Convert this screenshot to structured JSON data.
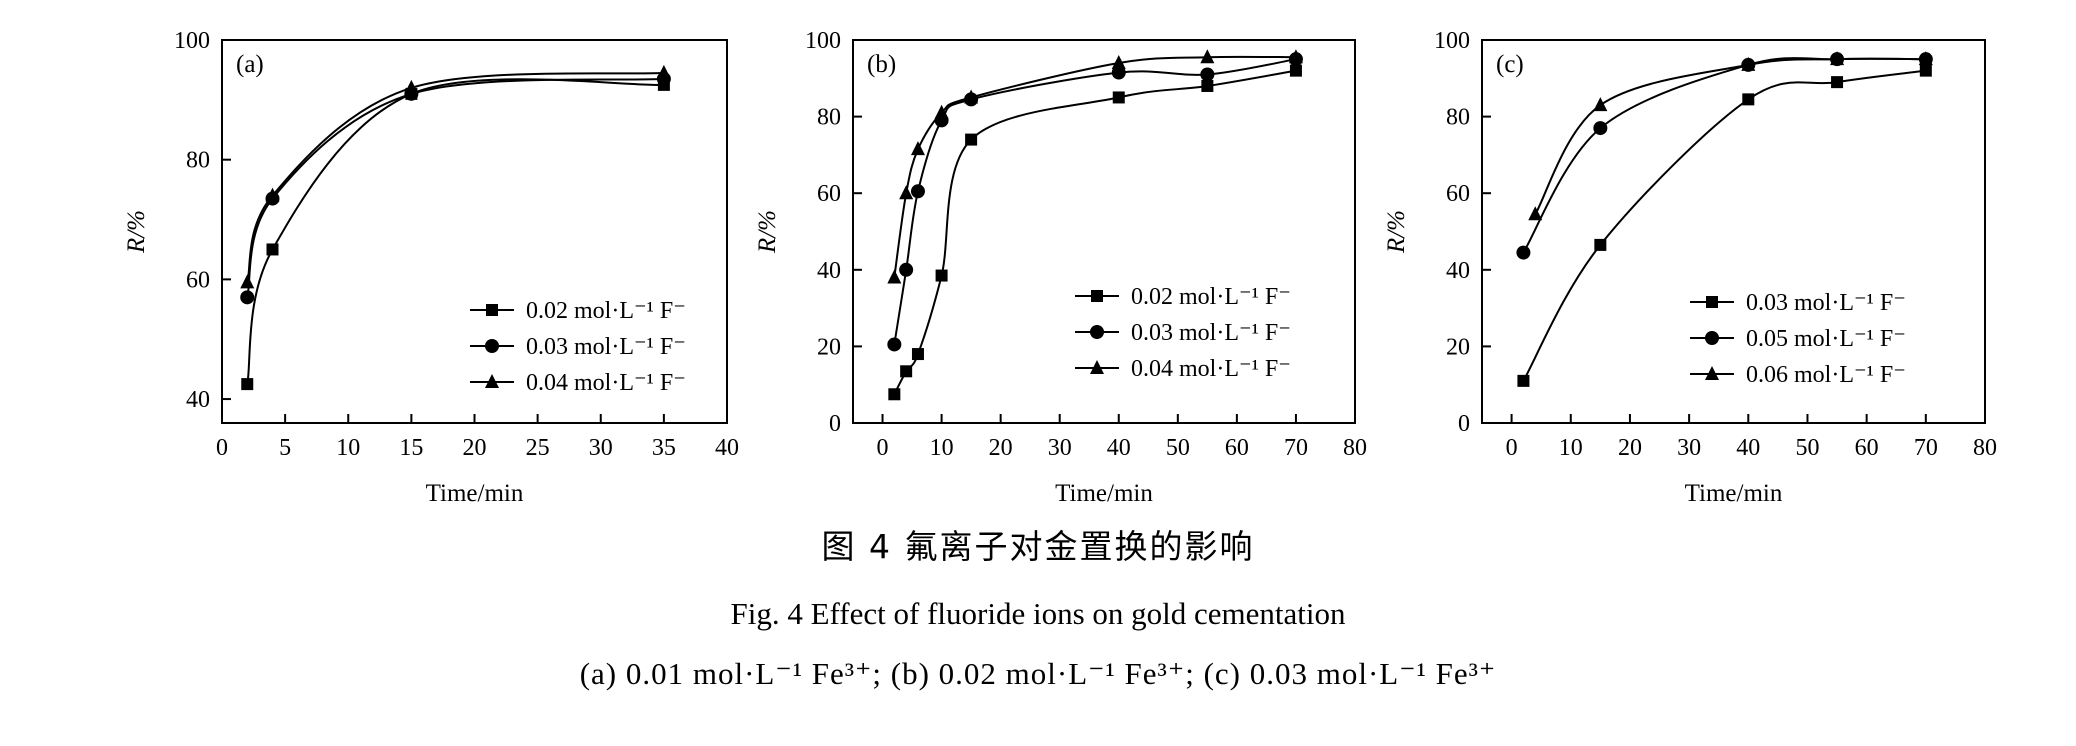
{
  "chart_data": [
    {
      "type": "scatter",
      "panel_label": "(a)",
      "xlabel": "Time/min",
      "ylabel": "R/%",
      "xlim": [
        0,
        40
      ],
      "ylim": [
        36,
        100
      ],
      "xticks": [
        0,
        5,
        10,
        15,
        20,
        25,
        30,
        35,
        40
      ],
      "yticks": [
        40,
        60,
        80,
        100
      ],
      "legend_position": "lower-right",
      "series": [
        {
          "name": "0.02 mol·L⁻¹ F⁻",
          "marker": "square",
          "x": [
            2,
            4,
            15,
            35
          ],
          "y": [
            42.5,
            65,
            91,
            92.5
          ]
        },
        {
          "name": "0.03 mol·L⁻¹ F⁻",
          "marker": "circle",
          "x": [
            2,
            4,
            15,
            35
          ],
          "y": [
            57,
            73.5,
            91,
            93.5
          ]
        },
        {
          "name": "0.04 mol·L⁻¹ F⁻",
          "marker": "triangle",
          "x": [
            2,
            4,
            15,
            35
          ],
          "y": [
            59.5,
            74,
            92,
            94.5
          ]
        }
      ]
    },
    {
      "type": "scatter",
      "panel_label": "(b)",
      "xlabel": "Time/min",
      "ylabel": "R/%",
      "xlim": [
        -5,
        80
      ],
      "ylim": [
        0,
        100
      ],
      "xticks": [
        0,
        10,
        20,
        30,
        40,
        50,
        60,
        70,
        80
      ],
      "yticks": [
        0,
        20,
        40,
        60,
        80,
        100
      ],
      "legend_position": "center-right",
      "series": [
        {
          "name": "0.02 mol·L⁻¹ F⁻",
          "marker": "square",
          "x": [
            2,
            4,
            6,
            10,
            15,
            40,
            55,
            70
          ],
          "y": [
            7.5,
            13.5,
            18,
            38.5,
            74,
            85,
            88,
            92
          ]
        },
        {
          "name": "0.03 mol·L⁻¹ F⁻",
          "marker": "circle",
          "x": [
            2,
            4,
            6,
            10,
            15,
            40,
            55,
            70
          ],
          "y": [
            20.5,
            40,
            60.5,
            79,
            84.5,
            91.5,
            91,
            95
          ]
        },
        {
          "name": "0.04 mol·L⁻¹ F⁻",
          "marker": "triangle",
          "x": [
            2,
            4,
            6,
            10,
            15,
            40,
            55,
            70
          ],
          "y": [
            38,
            60,
            71.5,
            81,
            85,
            94,
            95.5,
            95.5
          ]
        }
      ]
    },
    {
      "type": "scatter",
      "panel_label": "(c)",
      "xlabel": "Time/min",
      "ylabel": "R/%",
      "xlim": [
        -5,
        80
      ],
      "ylim": [
        0,
        100
      ],
      "xticks": [
        0,
        10,
        20,
        30,
        40,
        50,
        60,
        70,
        80
      ],
      "yticks": [
        0,
        20,
        40,
        60,
        80,
        100
      ],
      "legend_position": "lower-right",
      "series": [
        {
          "name": "0.03 mol·L⁻¹ F⁻",
          "marker": "square",
          "x": [
            2,
            15,
            40,
            55,
            70
          ],
          "y": [
            11,
            46.5,
            84.5,
            89,
            92
          ]
        },
        {
          "name": "0.05 mol·L⁻¹ F⁻",
          "marker": "circle",
          "x": [
            2,
            15,
            40,
            55,
            70
          ],
          "y": [
            44.5,
            77,
            93.5,
            95,
            95
          ]
        },
        {
          "name": "0.06 mol·L⁻¹ F⁻",
          "marker": "triangle",
          "x": [
            4,
            15,
            40,
            55,
            70
          ],
          "y": [
            54.5,
            83,
            93.5,
            95,
            95
          ]
        }
      ]
    }
  ],
  "captions": {
    "cn": "图 4 氟离子对金置换的影响",
    "en": "Fig. 4   Effect of fluoride ions on gold cementation",
    "sub": "(a) 0.01 mol·L⁻¹ Fe³⁺; (b) 0.02 mol·L⁻¹ Fe³⁺; (c) 0.03 mol·L⁻¹ Fe³⁺"
  }
}
